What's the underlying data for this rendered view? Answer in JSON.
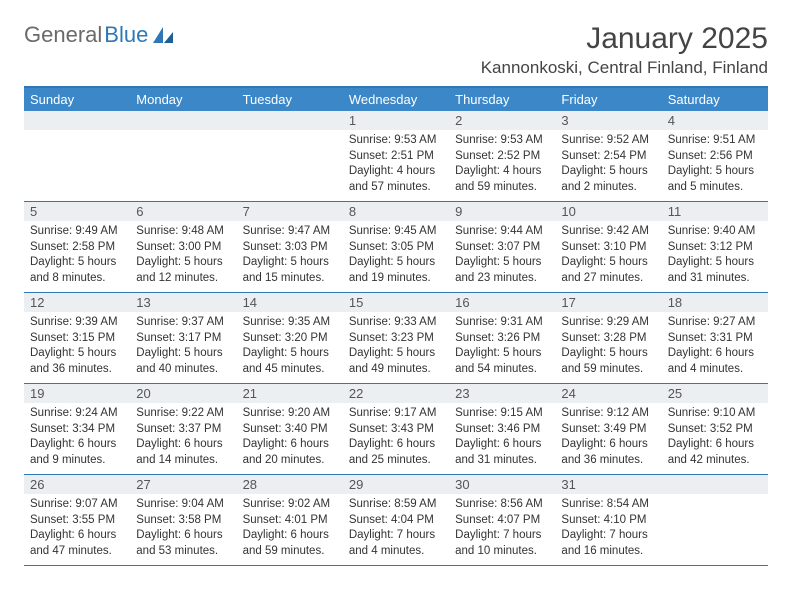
{
  "brand": {
    "word1": "General",
    "word2": "Blue"
  },
  "title": "January 2025",
  "location": "Kannonkoski, Central Finland, Finland",
  "colors": {
    "header_bar": "#3b87c8",
    "header_border": "#2f77b7",
    "daynum_bg": "#eceff2",
    "text": "#333333",
    "logo_gray": "#6a6a6a",
    "logo_blue": "#2f77b7"
  },
  "weekdays": [
    "Sunday",
    "Monday",
    "Tuesday",
    "Wednesday",
    "Thursday",
    "Friday",
    "Saturday"
  ],
  "weeks": [
    [
      {
        "num": "",
        "sunrise": "",
        "sunset": "",
        "daylight": ""
      },
      {
        "num": "",
        "sunrise": "",
        "sunset": "",
        "daylight": ""
      },
      {
        "num": "",
        "sunrise": "",
        "sunset": "",
        "daylight": ""
      },
      {
        "num": "1",
        "sunrise": "Sunrise: 9:53 AM",
        "sunset": "Sunset: 2:51 PM",
        "daylight": "Daylight: 4 hours and 57 minutes."
      },
      {
        "num": "2",
        "sunrise": "Sunrise: 9:53 AM",
        "sunset": "Sunset: 2:52 PM",
        "daylight": "Daylight: 4 hours and 59 minutes."
      },
      {
        "num": "3",
        "sunrise": "Sunrise: 9:52 AM",
        "sunset": "Sunset: 2:54 PM",
        "daylight": "Daylight: 5 hours and 2 minutes."
      },
      {
        "num": "4",
        "sunrise": "Sunrise: 9:51 AM",
        "sunset": "Sunset: 2:56 PM",
        "daylight": "Daylight: 5 hours and 5 minutes."
      }
    ],
    [
      {
        "num": "5",
        "sunrise": "Sunrise: 9:49 AM",
        "sunset": "Sunset: 2:58 PM",
        "daylight": "Daylight: 5 hours and 8 minutes."
      },
      {
        "num": "6",
        "sunrise": "Sunrise: 9:48 AM",
        "sunset": "Sunset: 3:00 PM",
        "daylight": "Daylight: 5 hours and 12 minutes."
      },
      {
        "num": "7",
        "sunrise": "Sunrise: 9:47 AM",
        "sunset": "Sunset: 3:03 PM",
        "daylight": "Daylight: 5 hours and 15 minutes."
      },
      {
        "num": "8",
        "sunrise": "Sunrise: 9:45 AM",
        "sunset": "Sunset: 3:05 PM",
        "daylight": "Daylight: 5 hours and 19 minutes."
      },
      {
        "num": "9",
        "sunrise": "Sunrise: 9:44 AM",
        "sunset": "Sunset: 3:07 PM",
        "daylight": "Daylight: 5 hours and 23 minutes."
      },
      {
        "num": "10",
        "sunrise": "Sunrise: 9:42 AM",
        "sunset": "Sunset: 3:10 PM",
        "daylight": "Daylight: 5 hours and 27 minutes."
      },
      {
        "num": "11",
        "sunrise": "Sunrise: 9:40 AM",
        "sunset": "Sunset: 3:12 PM",
        "daylight": "Daylight: 5 hours and 31 minutes."
      }
    ],
    [
      {
        "num": "12",
        "sunrise": "Sunrise: 9:39 AM",
        "sunset": "Sunset: 3:15 PM",
        "daylight": "Daylight: 5 hours and 36 minutes."
      },
      {
        "num": "13",
        "sunrise": "Sunrise: 9:37 AM",
        "sunset": "Sunset: 3:17 PM",
        "daylight": "Daylight: 5 hours and 40 minutes."
      },
      {
        "num": "14",
        "sunrise": "Sunrise: 9:35 AM",
        "sunset": "Sunset: 3:20 PM",
        "daylight": "Daylight: 5 hours and 45 minutes."
      },
      {
        "num": "15",
        "sunrise": "Sunrise: 9:33 AM",
        "sunset": "Sunset: 3:23 PM",
        "daylight": "Daylight: 5 hours and 49 minutes."
      },
      {
        "num": "16",
        "sunrise": "Sunrise: 9:31 AM",
        "sunset": "Sunset: 3:26 PM",
        "daylight": "Daylight: 5 hours and 54 minutes."
      },
      {
        "num": "17",
        "sunrise": "Sunrise: 9:29 AM",
        "sunset": "Sunset: 3:28 PM",
        "daylight": "Daylight: 5 hours and 59 minutes."
      },
      {
        "num": "18",
        "sunrise": "Sunrise: 9:27 AM",
        "sunset": "Sunset: 3:31 PM",
        "daylight": "Daylight: 6 hours and 4 minutes."
      }
    ],
    [
      {
        "num": "19",
        "sunrise": "Sunrise: 9:24 AM",
        "sunset": "Sunset: 3:34 PM",
        "daylight": "Daylight: 6 hours and 9 minutes."
      },
      {
        "num": "20",
        "sunrise": "Sunrise: 9:22 AM",
        "sunset": "Sunset: 3:37 PM",
        "daylight": "Daylight: 6 hours and 14 minutes."
      },
      {
        "num": "21",
        "sunrise": "Sunrise: 9:20 AM",
        "sunset": "Sunset: 3:40 PM",
        "daylight": "Daylight: 6 hours and 20 minutes."
      },
      {
        "num": "22",
        "sunrise": "Sunrise: 9:17 AM",
        "sunset": "Sunset: 3:43 PM",
        "daylight": "Daylight: 6 hours and 25 minutes."
      },
      {
        "num": "23",
        "sunrise": "Sunrise: 9:15 AM",
        "sunset": "Sunset: 3:46 PM",
        "daylight": "Daylight: 6 hours and 31 minutes."
      },
      {
        "num": "24",
        "sunrise": "Sunrise: 9:12 AM",
        "sunset": "Sunset: 3:49 PM",
        "daylight": "Daylight: 6 hours and 36 minutes."
      },
      {
        "num": "25",
        "sunrise": "Sunrise: 9:10 AM",
        "sunset": "Sunset: 3:52 PM",
        "daylight": "Daylight: 6 hours and 42 minutes."
      }
    ],
    [
      {
        "num": "26",
        "sunrise": "Sunrise: 9:07 AM",
        "sunset": "Sunset: 3:55 PM",
        "daylight": "Daylight: 6 hours and 47 minutes."
      },
      {
        "num": "27",
        "sunrise": "Sunrise: 9:04 AM",
        "sunset": "Sunset: 3:58 PM",
        "daylight": "Daylight: 6 hours and 53 minutes."
      },
      {
        "num": "28",
        "sunrise": "Sunrise: 9:02 AM",
        "sunset": "Sunset: 4:01 PM",
        "daylight": "Daylight: 6 hours and 59 minutes."
      },
      {
        "num": "29",
        "sunrise": "Sunrise: 8:59 AM",
        "sunset": "Sunset: 4:04 PM",
        "daylight": "Daylight: 7 hours and 4 minutes."
      },
      {
        "num": "30",
        "sunrise": "Sunrise: 8:56 AM",
        "sunset": "Sunset: 4:07 PM",
        "daylight": "Daylight: 7 hours and 10 minutes."
      },
      {
        "num": "31",
        "sunrise": "Sunrise: 8:54 AM",
        "sunset": "Sunset: 4:10 PM",
        "daylight": "Daylight: 7 hours and 16 minutes."
      },
      {
        "num": "",
        "sunrise": "",
        "sunset": "",
        "daylight": ""
      }
    ]
  ]
}
